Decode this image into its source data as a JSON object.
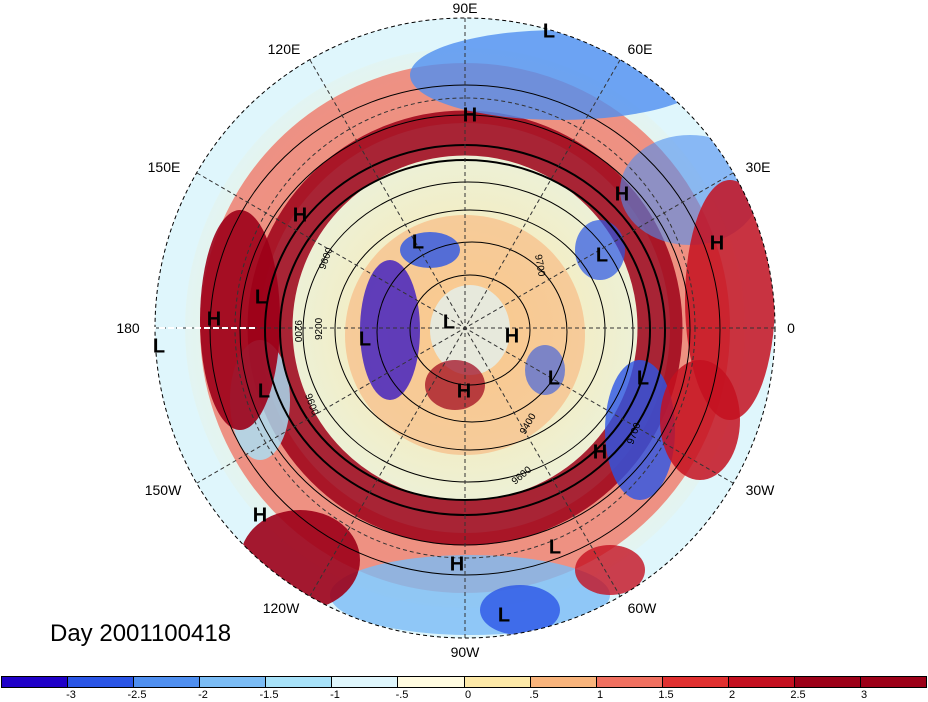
{
  "map": {
    "longitude_labels": [
      {
        "id": "lon-90e",
        "text": "90E"
      },
      {
        "id": "lon-60e",
        "text": "60E"
      },
      {
        "id": "lon-30e",
        "text": "30E"
      },
      {
        "id": "lon-0",
        "text": "0"
      },
      {
        "id": "lon-30w",
        "text": "30W"
      },
      {
        "id": "lon-60w",
        "text": "60W"
      },
      {
        "id": "lon-90w",
        "text": "90W"
      },
      {
        "id": "lon-120w",
        "text": "120W"
      },
      {
        "id": "lon-150w",
        "text": "150W"
      },
      {
        "id": "lon-180",
        "text": "180"
      },
      {
        "id": "lon-150e",
        "text": "150E"
      },
      {
        "id": "lon-120e",
        "text": "120E"
      }
    ],
    "pressure_centers": [
      {
        "id": "c1",
        "type": "L"
      },
      {
        "id": "c2",
        "type": "H"
      },
      {
        "id": "c3",
        "type": "H"
      },
      {
        "id": "c4",
        "type": "H"
      },
      {
        "id": "c5",
        "type": "H"
      },
      {
        "id": "c6",
        "type": "L"
      },
      {
        "id": "c7",
        "type": "L"
      },
      {
        "id": "c8",
        "type": "H"
      },
      {
        "id": "c9",
        "type": "L"
      },
      {
        "id": "c10",
        "type": "L"
      },
      {
        "id": "c11",
        "type": "H"
      },
      {
        "id": "c12",
        "type": "L"
      },
      {
        "id": "c13",
        "type": "L"
      },
      {
        "id": "c14",
        "type": "L"
      },
      {
        "id": "c15",
        "type": "L"
      },
      {
        "id": "c16",
        "type": "H"
      },
      {
        "id": "c17",
        "type": "H"
      },
      {
        "id": "c18",
        "type": "L"
      },
      {
        "id": "c19",
        "type": "H"
      },
      {
        "id": "c20",
        "type": "L"
      },
      {
        "id": "c21",
        "type": "L"
      },
      {
        "id": "c22",
        "type": "H"
      }
    ],
    "contour_labels": [
      "9600",
      "9700",
      "9200",
      "9200",
      "9600",
      "9600",
      "9400",
      "9700"
    ],
    "date_label": "Day 2001100418"
  },
  "colorbar": {
    "colors": [
      "#1f00c8",
      "#2a55e6",
      "#4f8ff0",
      "#7bbcf5",
      "#a8e2f9",
      "#dff6fc",
      "#fffbe0",
      "#fde9a8",
      "#f8b47c",
      "#f07060",
      "#e03030",
      "#c41020",
      "#9c0018"
    ],
    "tick_labels": [
      "-3",
      "-2.5",
      "-2",
      "-1.5",
      "-1",
      "-.5",
      "0",
      ".5",
      "1",
      "1.5",
      "2",
      "2.5",
      "3"
    ]
  }
}
